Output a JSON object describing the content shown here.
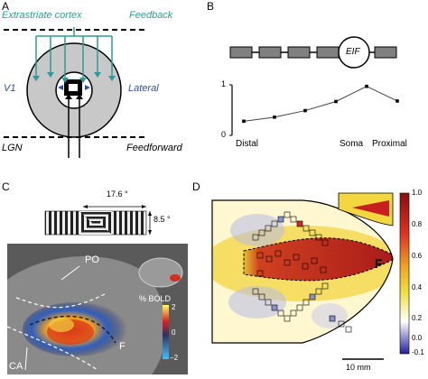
{
  "panels": {
    "A": {
      "label": "A",
      "extrastriate": "Extrastriate cortex",
      "feedback": "Feedback",
      "v1": "V1",
      "lateral": "Lateral",
      "lgn": "LGN",
      "feedforward": "Feedforward",
      "colors": {
        "teal": "#2e9a9a",
        "blue": "#2f4fa0",
        "ring": "#c8c8c8"
      }
    },
    "B": {
      "label": "B",
      "eif": "EIF",
      "ytick_top": "1",
      "ytick_bottom": "0",
      "x_labels": [
        "Distal",
        "Soma",
        "Proximal"
      ]
    },
    "C": {
      "label": "C",
      "width_label": "17.6 °",
      "height_label": "8.5 °",
      "po": "PO",
      "ca": "CA",
      "f": "F",
      "cbar_title": "% BOLD",
      "cbar_ticks": [
        "2",
        "0",
        "−2"
      ]
    },
    "D": {
      "label": "D",
      "f": "F",
      "scalebar": "10 mm",
      "cbar_ticks": [
        "1.0",
        "0.8",
        "0.6",
        "0.4",
        "0.2",
        "0.0",
        "-0.1"
      ]
    }
  },
  "chart_data": {
    "type": "line",
    "x": [
      1,
      2,
      3,
      4,
      5,
      6
    ],
    "series": [
      {
        "values": [
          0.28,
          0.36,
          0.49,
          0.67,
          0.97,
          0.68
        ]
      }
    ],
    "xlabel": "",
    "ylabel": "",
    "ylim": [
      0,
      1
    ]
  }
}
